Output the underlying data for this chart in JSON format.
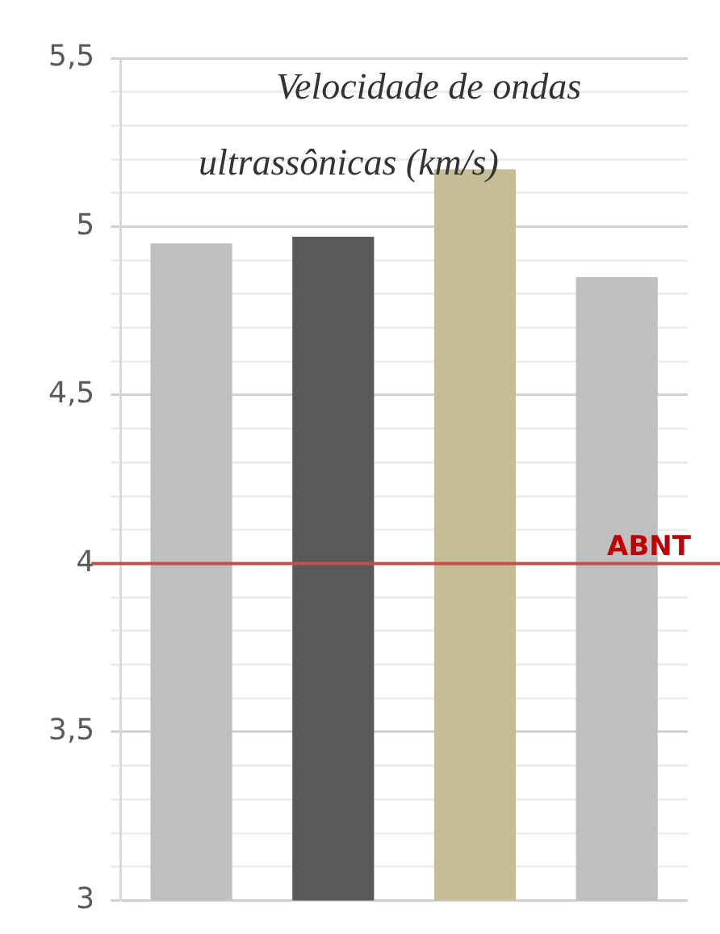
{
  "chart_data": {
    "type": "bar",
    "title": "Velocidade de ondas ultrassônicas (km/s)",
    "categories": [
      null,
      null,
      null,
      null
    ],
    "values": [
      4.95,
      4.97,
      5.17,
      4.85
    ],
    "colors": [
      "#bfbfbf",
      "#595959",
      "#c4bd97",
      "#bfbfbf"
    ],
    "ylim": [
      3,
      5.5
    ],
    "yticks": [
      {
        "value": 3,
        "label": "3"
      },
      {
        "value": 3.1,
        "label": null
      },
      {
        "value": 3.2,
        "label": null
      },
      {
        "value": 3.3,
        "label": null
      },
      {
        "value": 3.4,
        "label": null
      },
      {
        "value": 3.5,
        "label": "3,5"
      },
      {
        "value": 3.6,
        "label": null
      },
      {
        "value": 3.7,
        "label": null
      },
      {
        "value": 3.8,
        "label": null
      },
      {
        "value": 3.9,
        "label": null
      },
      {
        "value": 4,
        "label": "4"
      },
      {
        "value": 4.1,
        "label": null
      },
      {
        "value": 4.2,
        "label": null
      },
      {
        "value": 4.3,
        "label": null
      },
      {
        "value": 4.4,
        "label": null
      },
      {
        "value": 4.5,
        "label": "4,5"
      },
      {
        "value": 4.6,
        "label": null
      },
      {
        "value": 4.7,
        "label": null
      },
      {
        "value": 4.8,
        "label": null
      },
      {
        "value": 4.9,
        "label": null
      },
      {
        "value": 5,
        "label": "5"
      },
      {
        "value": 5.1,
        "label": null
      },
      {
        "value": 5.2,
        "label": null
      },
      {
        "value": 5.3,
        "label": null
      },
      {
        "value": 5.4,
        "label": null
      },
      {
        "value": 5.5,
        "label": "5,5"
      }
    ],
    "grid": "y",
    "legend": false,
    "ref_lines": [
      {
        "axis": "y",
        "value": 4,
        "label": "ABNT",
        "color": "#c0504d"
      }
    ]
  }
}
